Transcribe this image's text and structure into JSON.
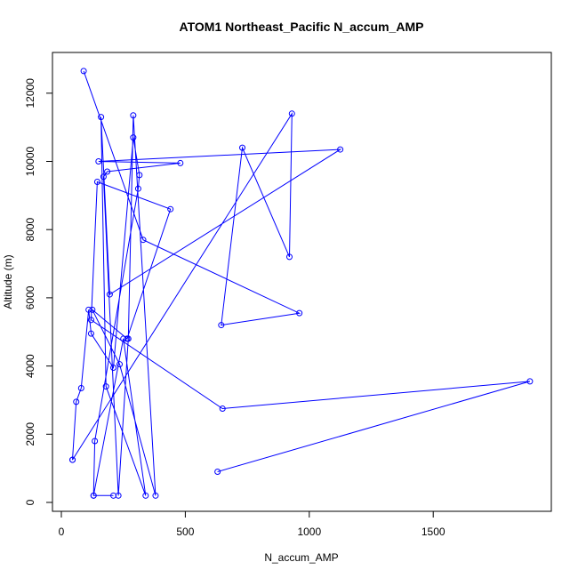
{
  "chart_data": {
    "type": "line",
    "title": "ATOM1 Northeast_Pacific N_accum_AMP",
    "xlabel": "N_accum_AMP",
    "ylabel": "Altitude (m)",
    "xlim": [
      0,
      1950
    ],
    "ylim": [
      -200,
      13000
    ],
    "xticks": [
      0,
      500,
      1000,
      1500
    ],
    "yticks": [
      0,
      2000,
      4000,
      6000,
      8000,
      10000,
      12000
    ],
    "grid": false,
    "legend": "none",
    "colors": {
      "series": "#0000ff",
      "axis": "#000000",
      "background": "#ffffff"
    },
    "series": [
      {
        "x": [
          90,
          330,
          960,
          645,
          730,
          920,
          930,
          45,
          45,
          60,
          80,
          110,
          120,
          210,
          290,
          315,
          310,
          135,
          130,
          210,
          130,
          250,
          340,
          180,
          160,
          195,
          1125,
          150,
          480,
          185,
          170,
          230,
          270,
          290,
          380,
          235,
          125,
          265,
          440,
          145,
          120,
          650,
          1890,
          630
        ],
        "y": [
          12650,
          7700,
          5550,
          5200,
          10400,
          7200,
          11400,
          1250,
          1250,
          2950,
          3350,
          5650,
          4950,
          3950,
          10700,
          9600,
          9200,
          1800,
          200,
          200,
          200,
          4800,
          200,
          3400,
          11300,
          6100,
          10350,
          10000,
          9950,
          9700,
          9550,
          200,
          4800,
          11350,
          200,
          4050,
          5650,
          4800,
          8600,
          9400,
          5350,
          2750,
          3550,
          900
        ]
      }
    ]
  }
}
